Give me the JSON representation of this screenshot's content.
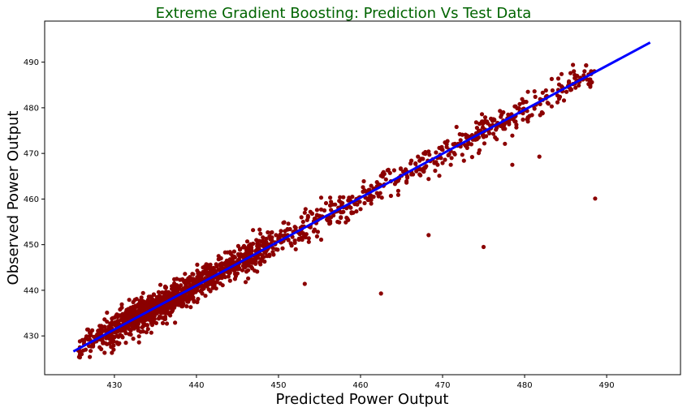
{
  "chart_data": {
    "type": "scatter",
    "title": "Extreme Gradient Boosting: Prediction Vs Test Data",
    "xlabel": "Predicted Power Output",
    "ylabel": "Observed Power Output",
    "xlim": [
      421.5,
      499
    ],
    "ylim": [
      421.5,
      499
    ],
    "xticks": [
      430,
      440,
      450,
      460,
      470,
      480,
      490
    ],
    "yticks": [
      430,
      440,
      450,
      460,
      470,
      480,
      490
    ],
    "grid": false,
    "colors": {
      "title": "#006400",
      "points": "#8b0000",
      "fit_line": "#0000ff"
    },
    "fit_line": {
      "x": [
        425,
        495.3
      ],
      "y": [
        426.6,
        494.3
      ]
    },
    "series": [
      {
        "type": "scatter",
        "outliers": [
          [
            488.6,
            460.1
          ],
          [
            475,
            449.5
          ],
          [
            468.3,
            452.1
          ],
          [
            462.5,
            439.3
          ],
          [
            478.5,
            467.5
          ],
          [
            481.8,
            469.3
          ],
          [
            455.2,
            451.1
          ],
          [
            453.2,
            441.4
          ]
        ],
        "points": []
      }
    ]
  }
}
